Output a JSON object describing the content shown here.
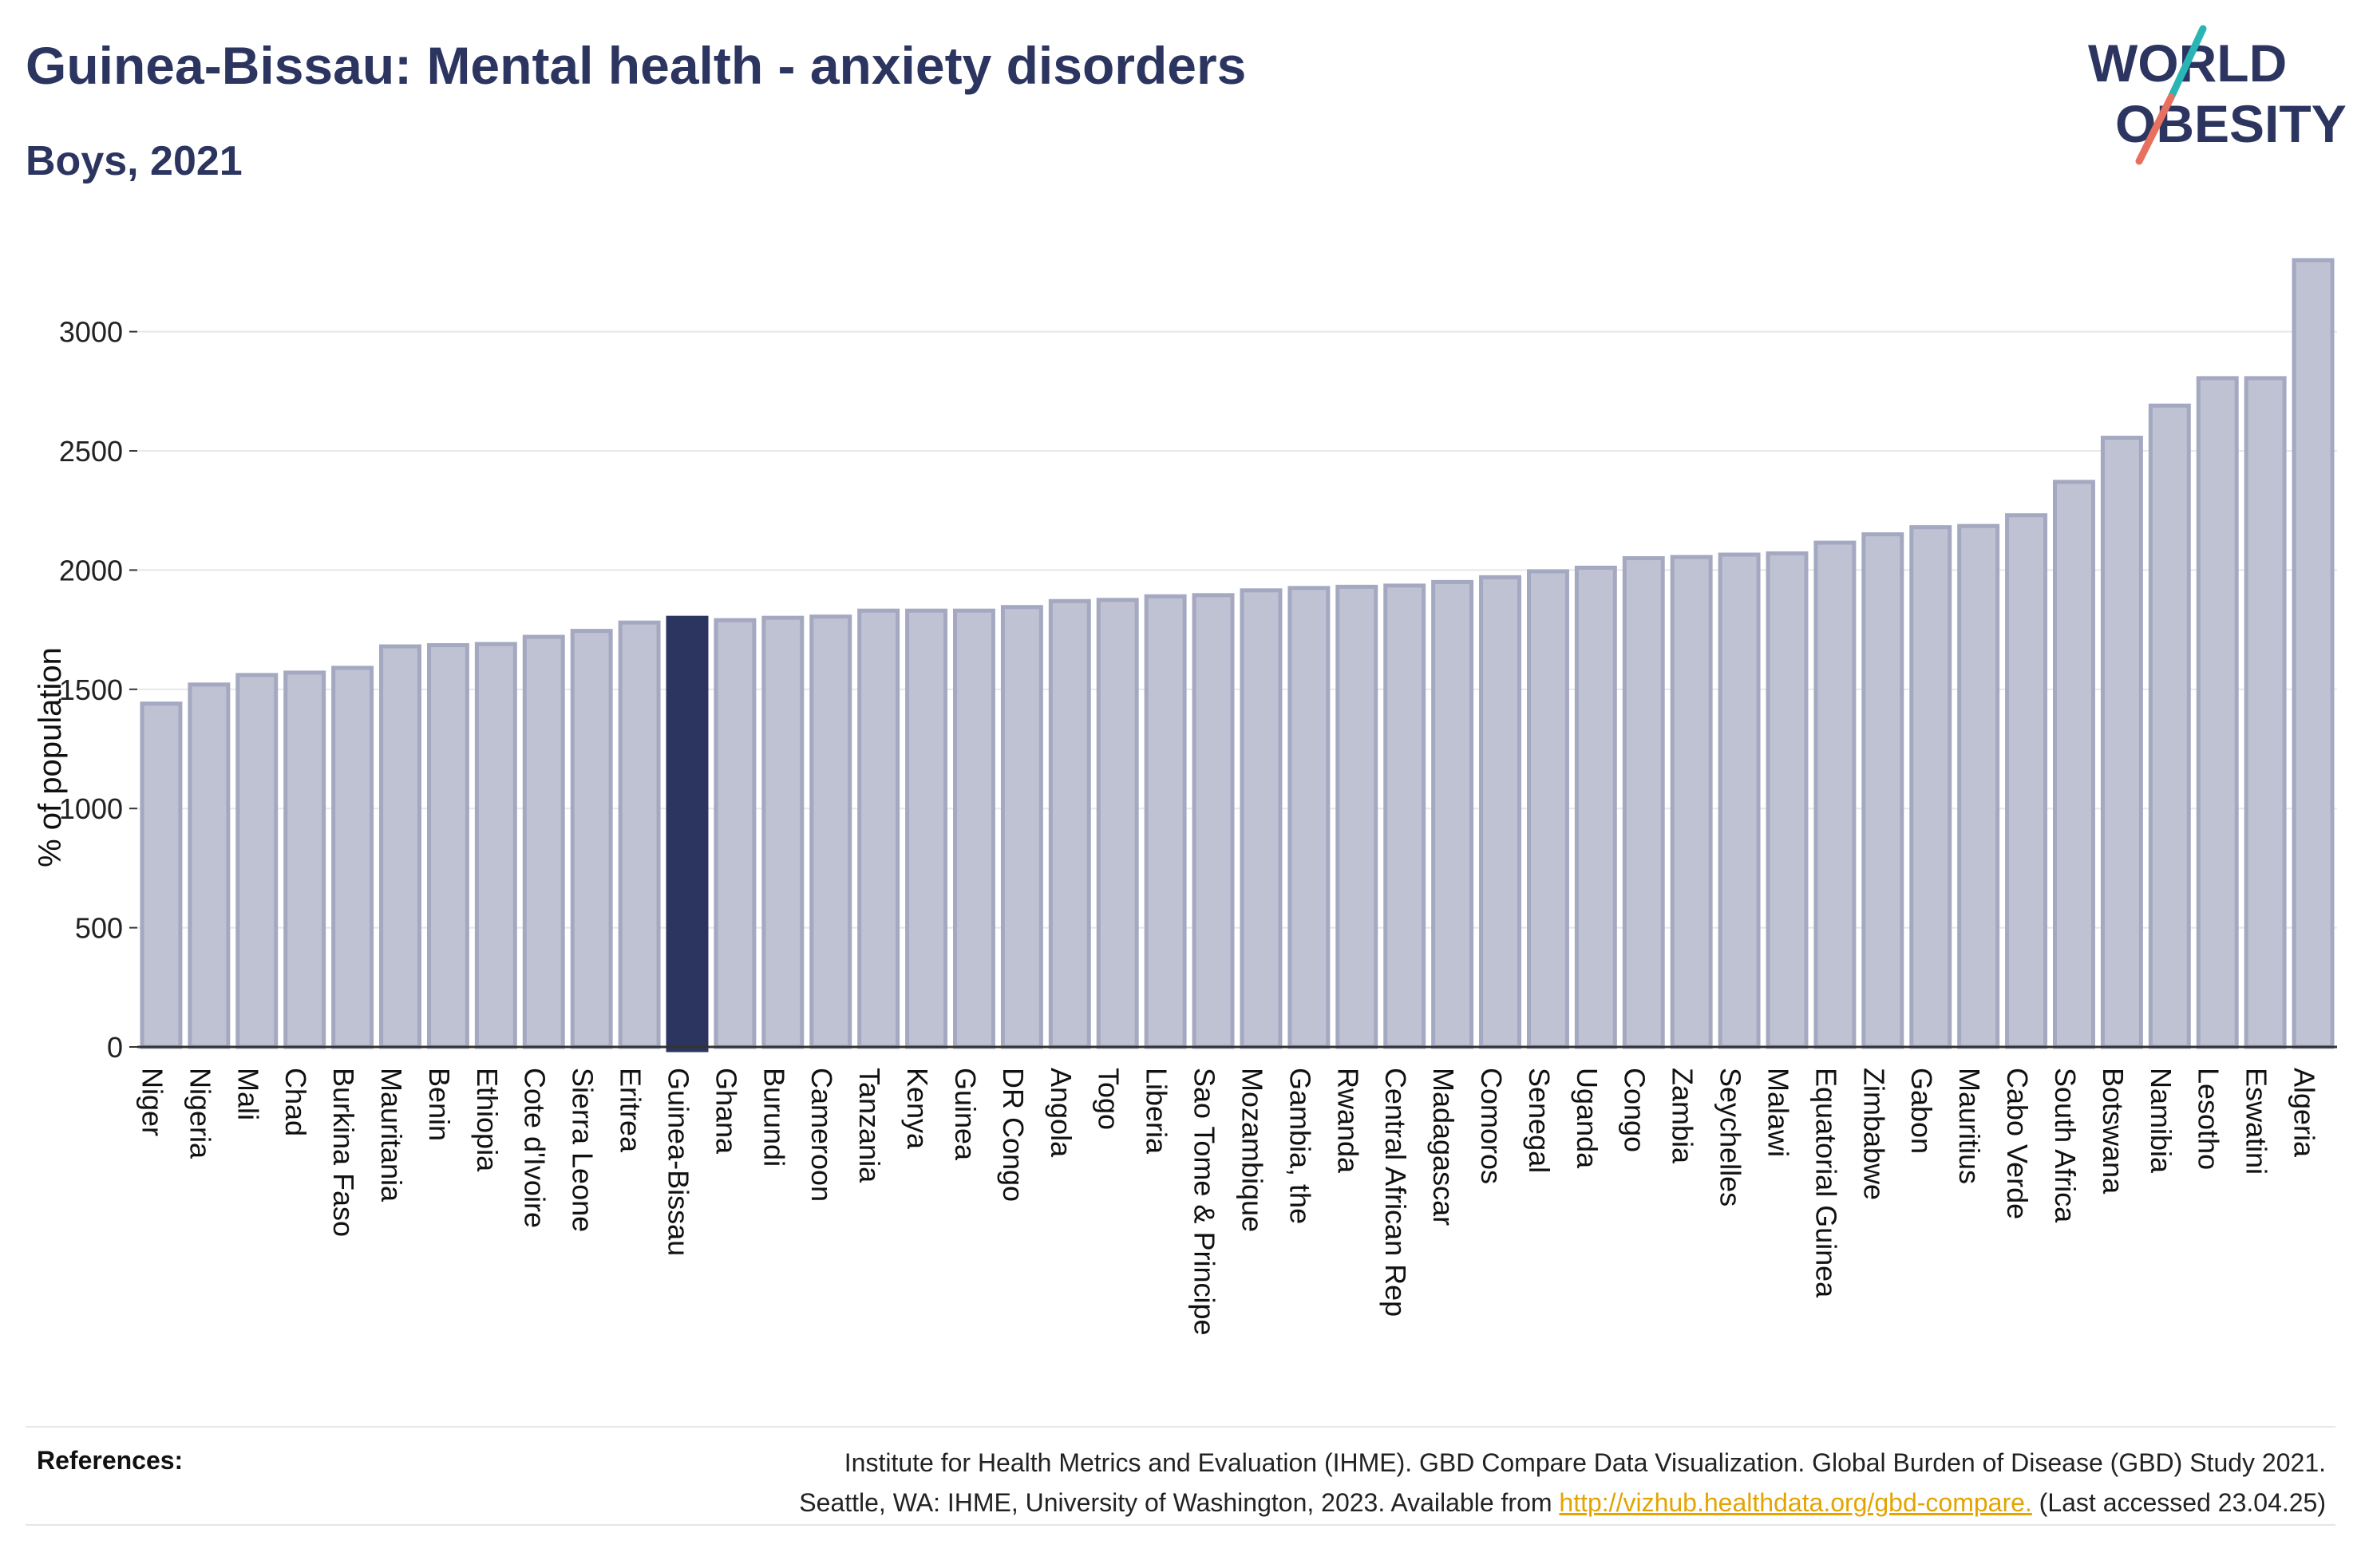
{
  "header": {
    "title": "Guinea-Bissau: Mental health - anxiety disorders",
    "subtitle": "Boys, 2021"
  },
  "logo": {
    "line1": "WORLD",
    "line2": "OBESITY",
    "colors": {
      "text": "#2b3560",
      "slash_teal": "#2ab5b5",
      "slash_coral": "#e8705e"
    }
  },
  "colors": {
    "bar_fill": "#bfc2d2",
    "bar_stroke": "#a4a8c0",
    "highlight_fill": "#2b3560",
    "grid": "#e8e8e8",
    "axis": "#333333"
  },
  "chart_data": {
    "type": "bar",
    "title": "Guinea-Bissau: Mental health - anxiety disorders",
    "subtitle": "Boys, 2021",
    "xlabel": "",
    "ylabel": "% of population",
    "ylim": [
      0,
      3300
    ],
    "yticks": [
      0,
      500,
      1000,
      1500,
      2000,
      2500,
      3000
    ],
    "grid": true,
    "highlight": "Guinea-Bissau",
    "categories": [
      "Niger",
      "Nigeria",
      "Mali",
      "Chad",
      "Burkina Faso",
      "Mauritania",
      "Benin",
      "Ethiopia",
      "Cote d'Ivoire",
      "Sierra Leone",
      "Eritrea",
      "Guinea-Bissau",
      "Ghana",
      "Burundi",
      "Cameroon",
      "Tanzania",
      "Kenya",
      "Guinea",
      "DR Congo",
      "Angola",
      "Togo",
      "Liberia",
      "Sao Tome & Principe",
      "Mozambique",
      "Gambia, the",
      "Rwanda",
      "Central African Rep",
      "Madagascar",
      "Comoros",
      "Senegal",
      "Uganda",
      "Congo",
      "Zambia",
      "Seychelles",
      "Malawi",
      "Equatorial Guinea",
      "Zimbabwe",
      "Gabon",
      "Mauritius",
      "Cabo Verde",
      "South Africa",
      "Botswana",
      "Namibia",
      "Lesotho",
      "Eswatini",
      "Algeria"
    ],
    "values": [
      1440,
      1520,
      1560,
      1570,
      1590,
      1680,
      1685,
      1690,
      1720,
      1745,
      1780,
      1800,
      1790,
      1800,
      1805,
      1830,
      1830,
      1830,
      1845,
      1870,
      1875,
      1890,
      1895,
      1915,
      1925,
      1930,
      1935,
      1950,
      1970,
      1995,
      2010,
      2050,
      2055,
      2065,
      2070,
      2115,
      2150,
      2180,
      2185,
      2230,
      2370,
      2555,
      2690,
      2805,
      2805,
      3300
    ]
  },
  "references": {
    "label": "References:",
    "line1": "Institute for Health Metrics and Evaluation (IHME). GBD Compare Data Visualization. Global Burden of Disease (GBD) Study 2021.",
    "line2_prefix": "Seattle, WA: IHME, University of Washington, 2023. Available from ",
    "link": "http://vizhub.healthdata.org/gbd-compare.",
    "line2_suffix": " (Last accessed 23.04.25)"
  }
}
